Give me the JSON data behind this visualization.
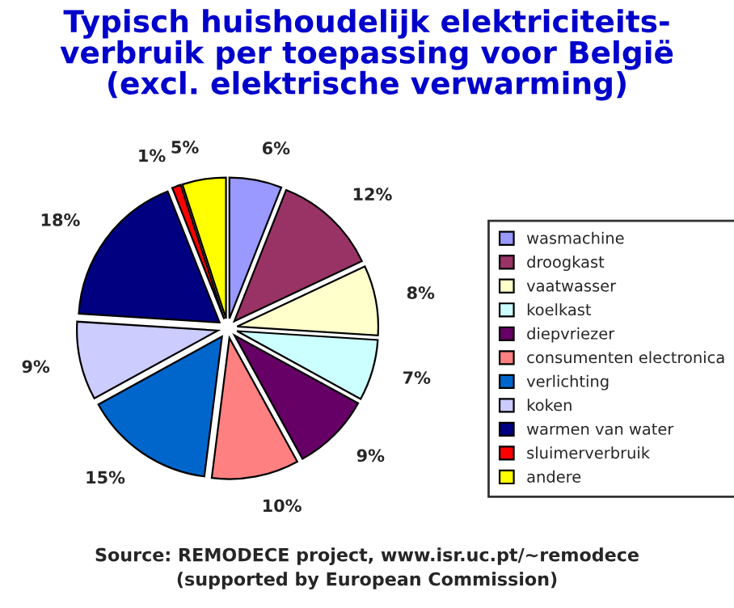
{
  "chart_data": {
    "type": "pie",
    "title": "Typisch huishoudelijk elektriciteits-\nverbruik per toepassing voor België\n(excl. elektrische verwarming)",
    "categories": [
      "wasmachine",
      "droogkast",
      "vaatwasser",
      "koelkast",
      "diepvriezer",
      "consumenten electronica",
      "verlichting",
      "koken",
      "warmen van water",
      "sluimerverbruik",
      "andere"
    ],
    "values": [
      6,
      12,
      8,
      7,
      9,
      10,
      15,
      9,
      18,
      1,
      5
    ],
    "value_labels": [
      "6%",
      "12%",
      "8%",
      "7%",
      "9%",
      "10%",
      "15%",
      "9%",
      "18%",
      "1%",
      "5%"
    ],
    "colors": [
      "#9999ff",
      "#993366",
      "#ffffcc",
      "#ccffff",
      "#660066",
      "#ff8080",
      "#0066cc",
      "#ccccff",
      "#000080",
      "#ff0000",
      "#ffff00"
    ],
    "legend": "right",
    "annotations": [
      "Source: REMODECE project, www.isr.uc.pt/~remodece",
      "(supported by European Commission)"
    ]
  }
}
